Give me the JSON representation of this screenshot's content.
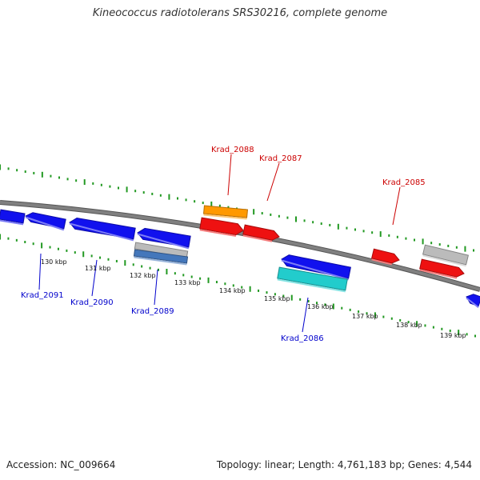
{
  "title": "Kineococcus radiotolerans SRS30216, complete genome",
  "footer": {
    "accession": "Accession: NC_009664",
    "summary": "Topology: linear; Length: 4,761,183 bp; Genes: 4,544"
  },
  "colors": {
    "backbone": "#808080",
    "ticks": "#229922",
    "forward_label": "#cc0000",
    "reverse_label": "#0000cc",
    "blue": "#1111ee",
    "red": "#ee1111",
    "orange": "#ff9900",
    "gray": "#bbbbbb",
    "cyan": "#22cccc",
    "steel": "#4477bb"
  },
  "scale_labels": [
    "130 kbp",
    "131 kbp",
    "132 kbp",
    "133 kbp",
    "134 kbp",
    "135 kbp",
    "136 kbp",
    "137 kbp",
    "138 kbp",
    "139 kbp"
  ],
  "gene_labels": [
    "Krad_2088",
    "Krad_2087",
    "Krad_2085",
    "Krad_2091",
    "Krad_2090",
    "Krad_2089",
    "Krad_2086"
  ]
}
